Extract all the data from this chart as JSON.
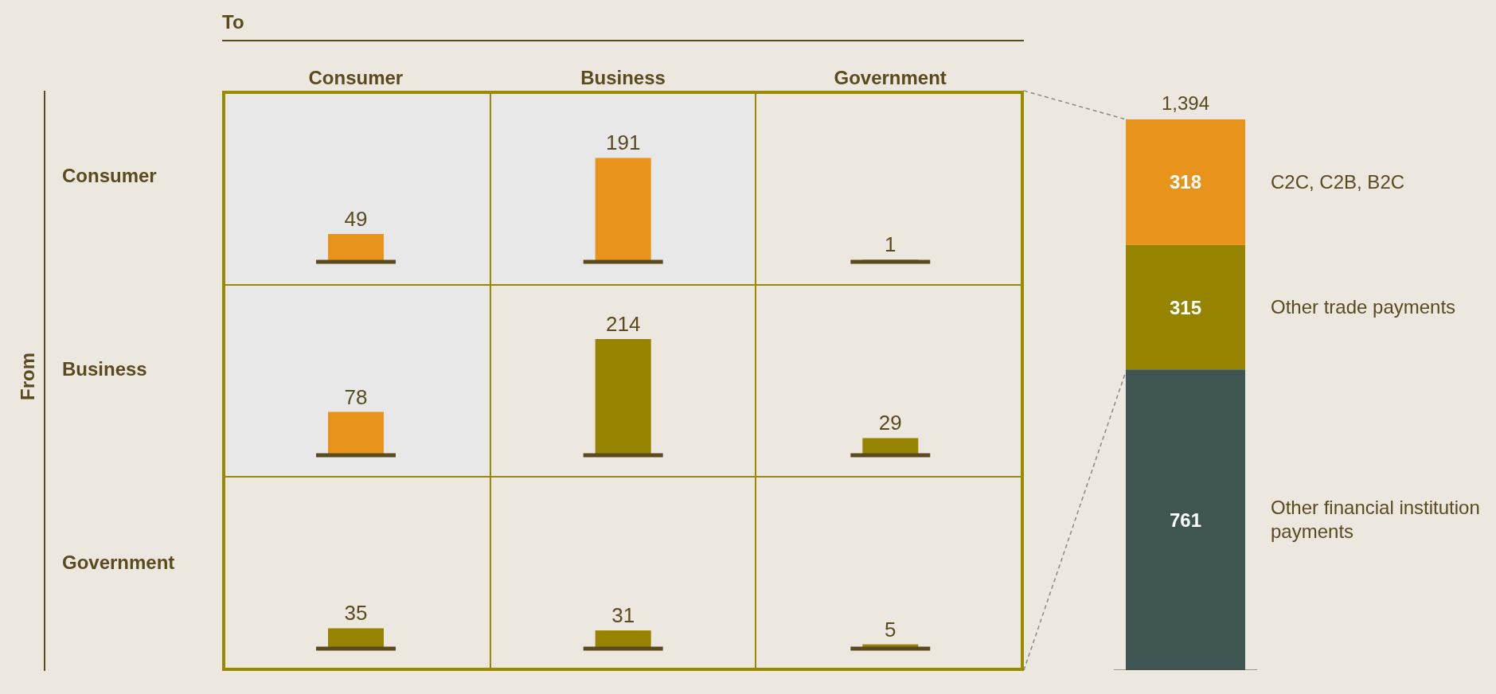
{
  "chart_data": [
    {
      "type": "bar",
      "xlabel": "To",
      "annotations": [
        "From"
      ],
      "ylabel": "Consumer",
      "categories": [
        "Consumer",
        "Business",
        "Government"
      ],
      "values": [
        49,
        191,
        1
      ],
      "colors": [
        "#e8931c",
        "#e8931c",
        "#968400"
      ],
      "data_labels": true,
      "bands": [
        {
          "axis": "x",
          "from": "Consumer",
          "to": "Business",
          "color": "#e8e8e8"
        }
      ]
    },
    {
      "type": "bar",
      "ylabel": "Business",
      "categories": [
        "Consumer",
        "Business",
        "Government"
      ],
      "values": [
        78,
        214,
        29
      ],
      "colors": [
        "#e8931c",
        "#968400",
        "#968400"
      ],
      "data_labels": true,
      "tick_labels": false,
      "bands": [
        {
          "axis": "x",
          "from": "Consumer",
          "to": "Consumer",
          "color": "#e8e8e8"
        }
      ]
    },
    {
      "type": "bar",
      "ylabel": "Government",
      "categories": [
        "Consumer",
        "Business",
        "Government"
      ],
      "values": [
        35,
        31,
        5
      ],
      "colors": [
        "#968400",
        "#968400",
        "#968400"
      ],
      "data_labels": true,
      "tick_labels": false
    },
    {
      "type": "bar",
      "stacked": true,
      "categories": [
        null
      ],
      "series": [
        {
          "name": "Other financial institution payments",
          "color": "#3e5552",
          "values": [
            761
          ]
        },
        {
          "name": "Other trade payments",
          "color": "#968400",
          "values": [
            315
          ]
        },
        {
          "name": "C2C, C2B, B2C",
          "color": "#e8931c",
          "values": [
            318
          ]
        }
      ],
      "data_labels": true,
      "totals": [
        "1,394"
      ]
    }
  ]
}
